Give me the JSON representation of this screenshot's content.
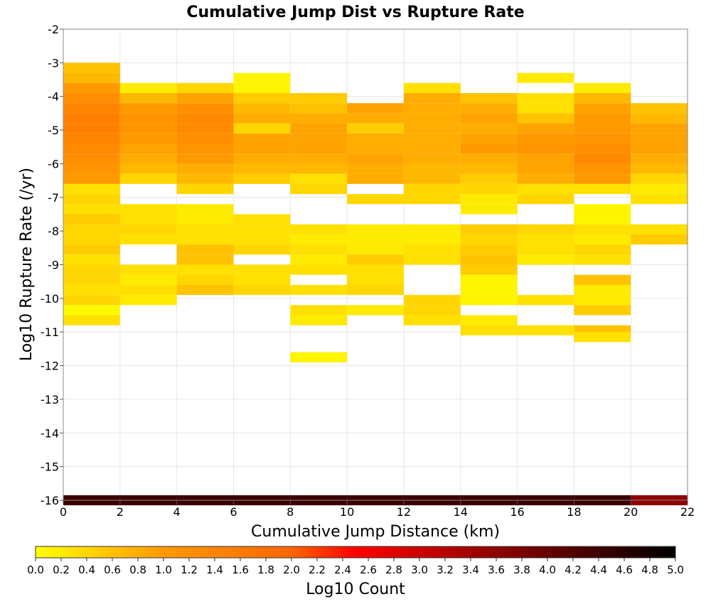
{
  "chart_data": {
    "type": "heatmap",
    "title": "Cumulative Jump Dist vs Rupture Rate",
    "xlabel": "Cumulative Jump Distance (km)",
    "ylabel": "Log10 Rupture Rate (/yr)",
    "xlim": [
      0,
      22
    ],
    "ylim": [
      -16,
      -2
    ],
    "x_ticks": [
      "0",
      "2",
      "4",
      "6",
      "8",
      "10",
      "12",
      "14",
      "16",
      "18",
      "20",
      "22"
    ],
    "y_ticks": [
      "-2",
      "-3",
      "-4",
      "-5",
      "-6",
      "-7",
      "-8",
      "-9",
      "-10",
      "-11",
      "-12",
      "-13",
      "-14",
      "-15",
      "-16"
    ],
    "x_bin_width": 2,
    "y_bin_height": 0.3,
    "grid": true,
    "colorbar": {
      "label": "Log10 Count",
      "range": [
        0,
        5
      ],
      "ticks": [
        "0.0",
        "0.2",
        "0.4",
        "0.6",
        "0.8",
        "1.0",
        "1.2",
        "1.4",
        "1.6",
        "1.8",
        "2.0",
        "2.2",
        "2.4",
        "2.6",
        "2.8",
        "3.0",
        "3.2",
        "3.4",
        "3.6",
        "3.8",
        "4.0",
        "4.2",
        "4.4",
        "4.6",
        "4.8",
        "5.0"
      ],
      "colors": [
        "#ffff00",
        "#ff9900",
        "#ff6600",
        "#ff0000",
        "#990000",
        "#000000"
      ]
    },
    "columns": [
      {
        "x": 0,
        "cells": [
          [
            -3.15,
            0.6
          ],
          [
            -3.45,
            0.7
          ],
          [
            -3.75,
            1.0
          ],
          [
            -4.05,
            1.2
          ],
          [
            -4.35,
            1.4
          ],
          [
            -4.65,
            1.5
          ],
          [
            -4.95,
            1.5
          ],
          [
            -5.25,
            1.4
          ],
          [
            -5.55,
            1.3
          ],
          [
            -5.85,
            1.2
          ],
          [
            -6.15,
            1.1
          ],
          [
            -6.45,
            1.0
          ],
          [
            -6.75,
            0.3
          ],
          [
            -7.05,
            0.4
          ],
          [
            -7.35,
            0.3
          ],
          [
            -7.65,
            0.5
          ],
          [
            -7.95,
            0.4
          ],
          [
            -8.25,
            0.4
          ],
          [
            -8.55,
            0.5
          ],
          [
            -8.85,
            0.3
          ],
          [
            -9.15,
            0.4
          ],
          [
            -9.45,
            0.4
          ],
          [
            -9.75,
            0.3
          ],
          [
            -10.05,
            0.4
          ],
          [
            -10.35,
            0.05
          ],
          [
            -10.65,
            0.3
          ],
          [
            -16.0,
            4.4
          ]
        ]
      },
      {
        "x": 2,
        "cells": [
          [
            -3.75,
            0.2
          ],
          [
            -4.05,
            0.7
          ],
          [
            -4.35,
            1.0
          ],
          [
            -4.65,
            1.1
          ],
          [
            -4.95,
            1.1
          ],
          [
            -5.25,
            1.0
          ],
          [
            -5.55,
            0.9
          ],
          [
            -5.85,
            0.8
          ],
          [
            -6.15,
            0.7
          ],
          [
            -6.45,
            0.4
          ],
          [
            -7.35,
            0.3
          ],
          [
            -7.65,
            0.3
          ],
          [
            -7.95,
            0.4
          ],
          [
            -8.25,
            0.3
          ],
          [
            -9.15,
            0.3
          ],
          [
            -9.45,
            0.2
          ],
          [
            -9.75,
            0.3
          ],
          [
            -10.05,
            0.2
          ],
          [
            -16.0,
            4.4
          ]
        ]
      },
      {
        "x": 4,
        "cells": [
          [
            -3.75,
            0.4
          ],
          [
            -4.05,
            0.9
          ],
          [
            -4.35,
            1.2
          ],
          [
            -4.65,
            1.3
          ],
          [
            -4.95,
            1.3
          ],
          [
            -5.25,
            1.2
          ],
          [
            -5.55,
            1.1
          ],
          [
            -5.85,
            1.0
          ],
          [
            -6.15,
            0.8
          ],
          [
            -6.45,
            0.7
          ],
          [
            -6.75,
            0.4
          ],
          [
            -7.35,
            0.2
          ],
          [
            -7.65,
            0.2
          ],
          [
            -7.95,
            0.3
          ],
          [
            -8.25,
            0.3
          ],
          [
            -8.55,
            0.6
          ],
          [
            -8.85,
            0.6
          ],
          [
            -9.15,
            0.3
          ],
          [
            -9.45,
            0.4
          ],
          [
            -9.75,
            0.6
          ],
          [
            -16.0,
            4.4
          ]
        ]
      },
      {
        "x": 6,
        "cells": [
          [
            -3.45,
            0.1
          ],
          [
            -3.75,
            0.1
          ],
          [
            -4.05,
            0.5
          ],
          [
            -4.35,
            0.7
          ],
          [
            -4.65,
            0.8
          ],
          [
            -4.95,
            0.4
          ],
          [
            -5.25,
            0.9
          ],
          [
            -5.55,
            0.9
          ],
          [
            -5.85,
            0.8
          ],
          [
            -6.15,
            0.7
          ],
          [
            -6.45,
            0.5
          ],
          [
            -7.65,
            0.3
          ],
          [
            -7.95,
            0.3
          ],
          [
            -8.25,
            0.3
          ],
          [
            -8.55,
            0.4
          ],
          [
            -9.15,
            0.3
          ],
          [
            -9.45,
            0.3
          ],
          [
            -9.75,
            0.4
          ],
          [
            -16.0,
            4.4
          ]
        ]
      },
      {
        "x": 8,
        "cells": [
          [
            -4.05,
            0.5
          ],
          [
            -4.35,
            0.6
          ],
          [
            -4.65,
            0.8
          ],
          [
            -4.95,
            0.9
          ],
          [
            -5.25,
            0.9
          ],
          [
            -5.55,
            0.9
          ],
          [
            -5.85,
            0.8
          ],
          [
            -6.15,
            0.7
          ],
          [
            -6.45,
            0.3
          ],
          [
            -6.75,
            0.4
          ],
          [
            -7.95,
            0.3
          ],
          [
            -8.25,
            0.2
          ],
          [
            -8.55,
            0.3
          ],
          [
            -8.85,
            0.2
          ],
          [
            -9.15,
            0.3
          ],
          [
            -9.75,
            0.3
          ],
          [
            -10.35,
            0.3
          ],
          [
            -10.65,
            0.2
          ],
          [
            -11.75,
            0.1
          ],
          [
            -16.0,
            4.4
          ]
        ]
      },
      {
        "x": 10,
        "cells": [
          [
            -4.35,
            0.9
          ],
          [
            -4.65,
            0.8
          ],
          [
            -4.95,
            0.5
          ],
          [
            -5.25,
            0.8
          ],
          [
            -5.55,
            0.8
          ],
          [
            -5.85,
            0.9
          ],
          [
            -6.15,
            0.8
          ],
          [
            -6.45,
            0.8
          ],
          [
            -7.05,
            0.4
          ],
          [
            -7.95,
            0.2
          ],
          [
            -8.25,
            0.2
          ],
          [
            -8.55,
            0.2
          ],
          [
            -8.85,
            0.5
          ],
          [
            -9.15,
            0.3
          ],
          [
            -9.45,
            0.3
          ],
          [
            -9.75,
            0.4
          ],
          [
            -10.35,
            0.2
          ],
          [
            -16.0,
            4.4
          ]
        ]
      },
      {
        "x": 12,
        "cells": [
          [
            -3.75,
            0.3
          ],
          [
            -4.05,
            0.8
          ],
          [
            -4.35,
            0.8
          ],
          [
            -4.65,
            0.8
          ],
          [
            -4.95,
            0.8
          ],
          [
            -5.25,
            0.8
          ],
          [
            -5.55,
            0.8
          ],
          [
            -5.85,
            0.8
          ],
          [
            -6.15,
            0.7
          ],
          [
            -6.45,
            0.7
          ],
          [
            -6.75,
            0.4
          ],
          [
            -7.05,
            0.4
          ],
          [
            -7.95,
            0.2
          ],
          [
            -8.25,
            0.2
          ],
          [
            -8.55,
            0.3
          ],
          [
            -8.85,
            0.3
          ],
          [
            -10.05,
            0.4
          ],
          [
            -10.35,
            0.4
          ],
          [
            -10.65,
            0.3
          ],
          [
            -16.0,
            4.4
          ]
        ]
      },
      {
        "x": 14,
        "cells": [
          [
            -4.05,
            0.6
          ],
          [
            -4.35,
            0.8
          ],
          [
            -4.65,
            0.9
          ],
          [
            -4.95,
            0.8
          ],
          [
            -5.25,
            0.9
          ],
          [
            -5.55,
            1.0
          ],
          [
            -5.85,
            0.8
          ],
          [
            -6.15,
            0.7
          ],
          [
            -6.45,
            0.5
          ],
          [
            -6.75,
            0.4
          ],
          [
            -7.05,
            0.2
          ],
          [
            -7.35,
            0.2
          ],
          [
            -7.95,
            0.5
          ],
          [
            -8.25,
            0.4
          ],
          [
            -8.55,
            0.5
          ],
          [
            -8.85,
            0.6
          ],
          [
            -9.15,
            0.5
          ],
          [
            -9.45,
            0.1
          ],
          [
            -9.75,
            0.1
          ],
          [
            -10.05,
            0.1
          ],
          [
            -10.65,
            0.2
          ],
          [
            -10.95,
            0.3
          ],
          [
            -16.0,
            4.4
          ]
        ]
      },
      {
        "x": 16,
        "cells": [
          [
            -3.45,
            0.2
          ],
          [
            -4.05,
            0.3
          ],
          [
            -4.35,
            0.3
          ],
          [
            -4.65,
            0.6
          ],
          [
            -4.95,
            0.9
          ],
          [
            -5.25,
            1.0
          ],
          [
            -5.55,
            1.1
          ],
          [
            -5.85,
            0.9
          ],
          [
            -6.15,
            0.9
          ],
          [
            -6.45,
            0.8
          ],
          [
            -6.75,
            0.3
          ],
          [
            -7.05,
            0.4
          ],
          [
            -7.95,
            0.4
          ],
          [
            -8.25,
            0.3
          ],
          [
            -8.55,
            0.3
          ],
          [
            -8.85,
            0.2
          ],
          [
            -10.05,
            0.3
          ],
          [
            -10.95,
            0.3
          ],
          [
            -16.0,
            4.4
          ]
        ]
      },
      {
        "x": 18,
        "cells": [
          [
            -3.75,
            0.2
          ],
          [
            -4.05,
            0.7
          ],
          [
            -4.35,
            0.9
          ],
          [
            -4.65,
            1.0
          ],
          [
            -4.95,
            1.0
          ],
          [
            -5.25,
            1.1
          ],
          [
            -5.55,
            1.2
          ],
          [
            -5.85,
            1.3
          ],
          [
            -6.15,
            1.1
          ],
          [
            -6.45,
            1.0
          ],
          [
            -6.75,
            0.3
          ],
          [
            -7.35,
            0.1
          ],
          [
            -7.65,
            0.1
          ],
          [
            -7.95,
            0.3
          ],
          [
            -8.25,
            0.2
          ],
          [
            -8.55,
            0.4
          ],
          [
            -8.85,
            0.3
          ],
          [
            -9.45,
            0.6
          ],
          [
            -9.75,
            0.2
          ],
          [
            -10.05,
            0.2
          ],
          [
            -10.35,
            0.5
          ],
          [
            -10.95,
            0.6
          ],
          [
            -11.15,
            0.3
          ],
          [
            -16.0,
            4.4
          ]
        ]
      },
      {
        "x": 20,
        "cells": [
          [
            -4.35,
            0.6
          ],
          [
            -4.65,
            0.7
          ],
          [
            -4.95,
            0.9
          ],
          [
            -5.25,
            0.9
          ],
          [
            -5.55,
            0.9
          ],
          [
            -5.85,
            0.8
          ],
          [
            -6.15,
            0.7
          ],
          [
            -6.45,
            0.4
          ],
          [
            -6.75,
            0.2
          ],
          [
            -7.05,
            0.3
          ],
          [
            -7.95,
            0.3
          ],
          [
            -8.25,
            0.5
          ],
          [
            -16.0,
            3.6
          ]
        ]
      }
    ]
  }
}
